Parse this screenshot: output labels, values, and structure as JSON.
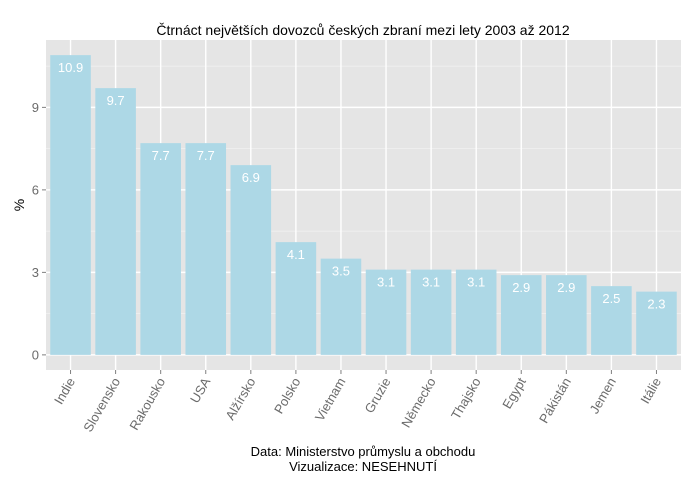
{
  "chart_data": {
    "type": "bar",
    "title": "Čtrnáct největších dovozců českých zbraní mezi lety 2003 až 2012",
    "xlabel": "",
    "ylabel": "%",
    "categories": [
      "Indie",
      "Slovensko",
      "Rakousko",
      "USA",
      "Alžírsko",
      "Polsko",
      "Vietnam",
      "Gruzie",
      "Německo",
      "Thajsko",
      "Egypt",
      "Pákistán",
      "Jemen",
      "Itálie"
    ],
    "values": [
      10.9,
      9.7,
      7.7,
      7.7,
      6.9,
      4.1,
      3.5,
      3.1,
      3.1,
      3.1,
      2.9,
      2.9,
      2.5,
      2.3
    ],
    "value_labels": [
      "10.9",
      "9.7",
      "7.7",
      "7.7",
      "6.9",
      "4.1",
      "3.5",
      "3.1",
      "3.1",
      "3.1",
      "2.9",
      "2.9",
      "2.5",
      "2.3"
    ],
    "y_ticks": [
      0,
      3,
      6,
      9
    ],
    "y_tick_labels": [
      "0",
      "3",
      "6",
      "9"
    ],
    "ylim": [
      -0.55,
      11.45
    ],
    "grid": true,
    "legend": "none",
    "colors": {
      "bar": "#add8e6",
      "panel": "#e5e5e5",
      "grid_major": "#ffffff",
      "grid_minor": "#f2f2f2"
    }
  },
  "caption": {
    "line1": "Data: Ministerstvo průmyslu a obchodu",
    "line2": "Vizualizace: NESEHNUTÍ"
  }
}
